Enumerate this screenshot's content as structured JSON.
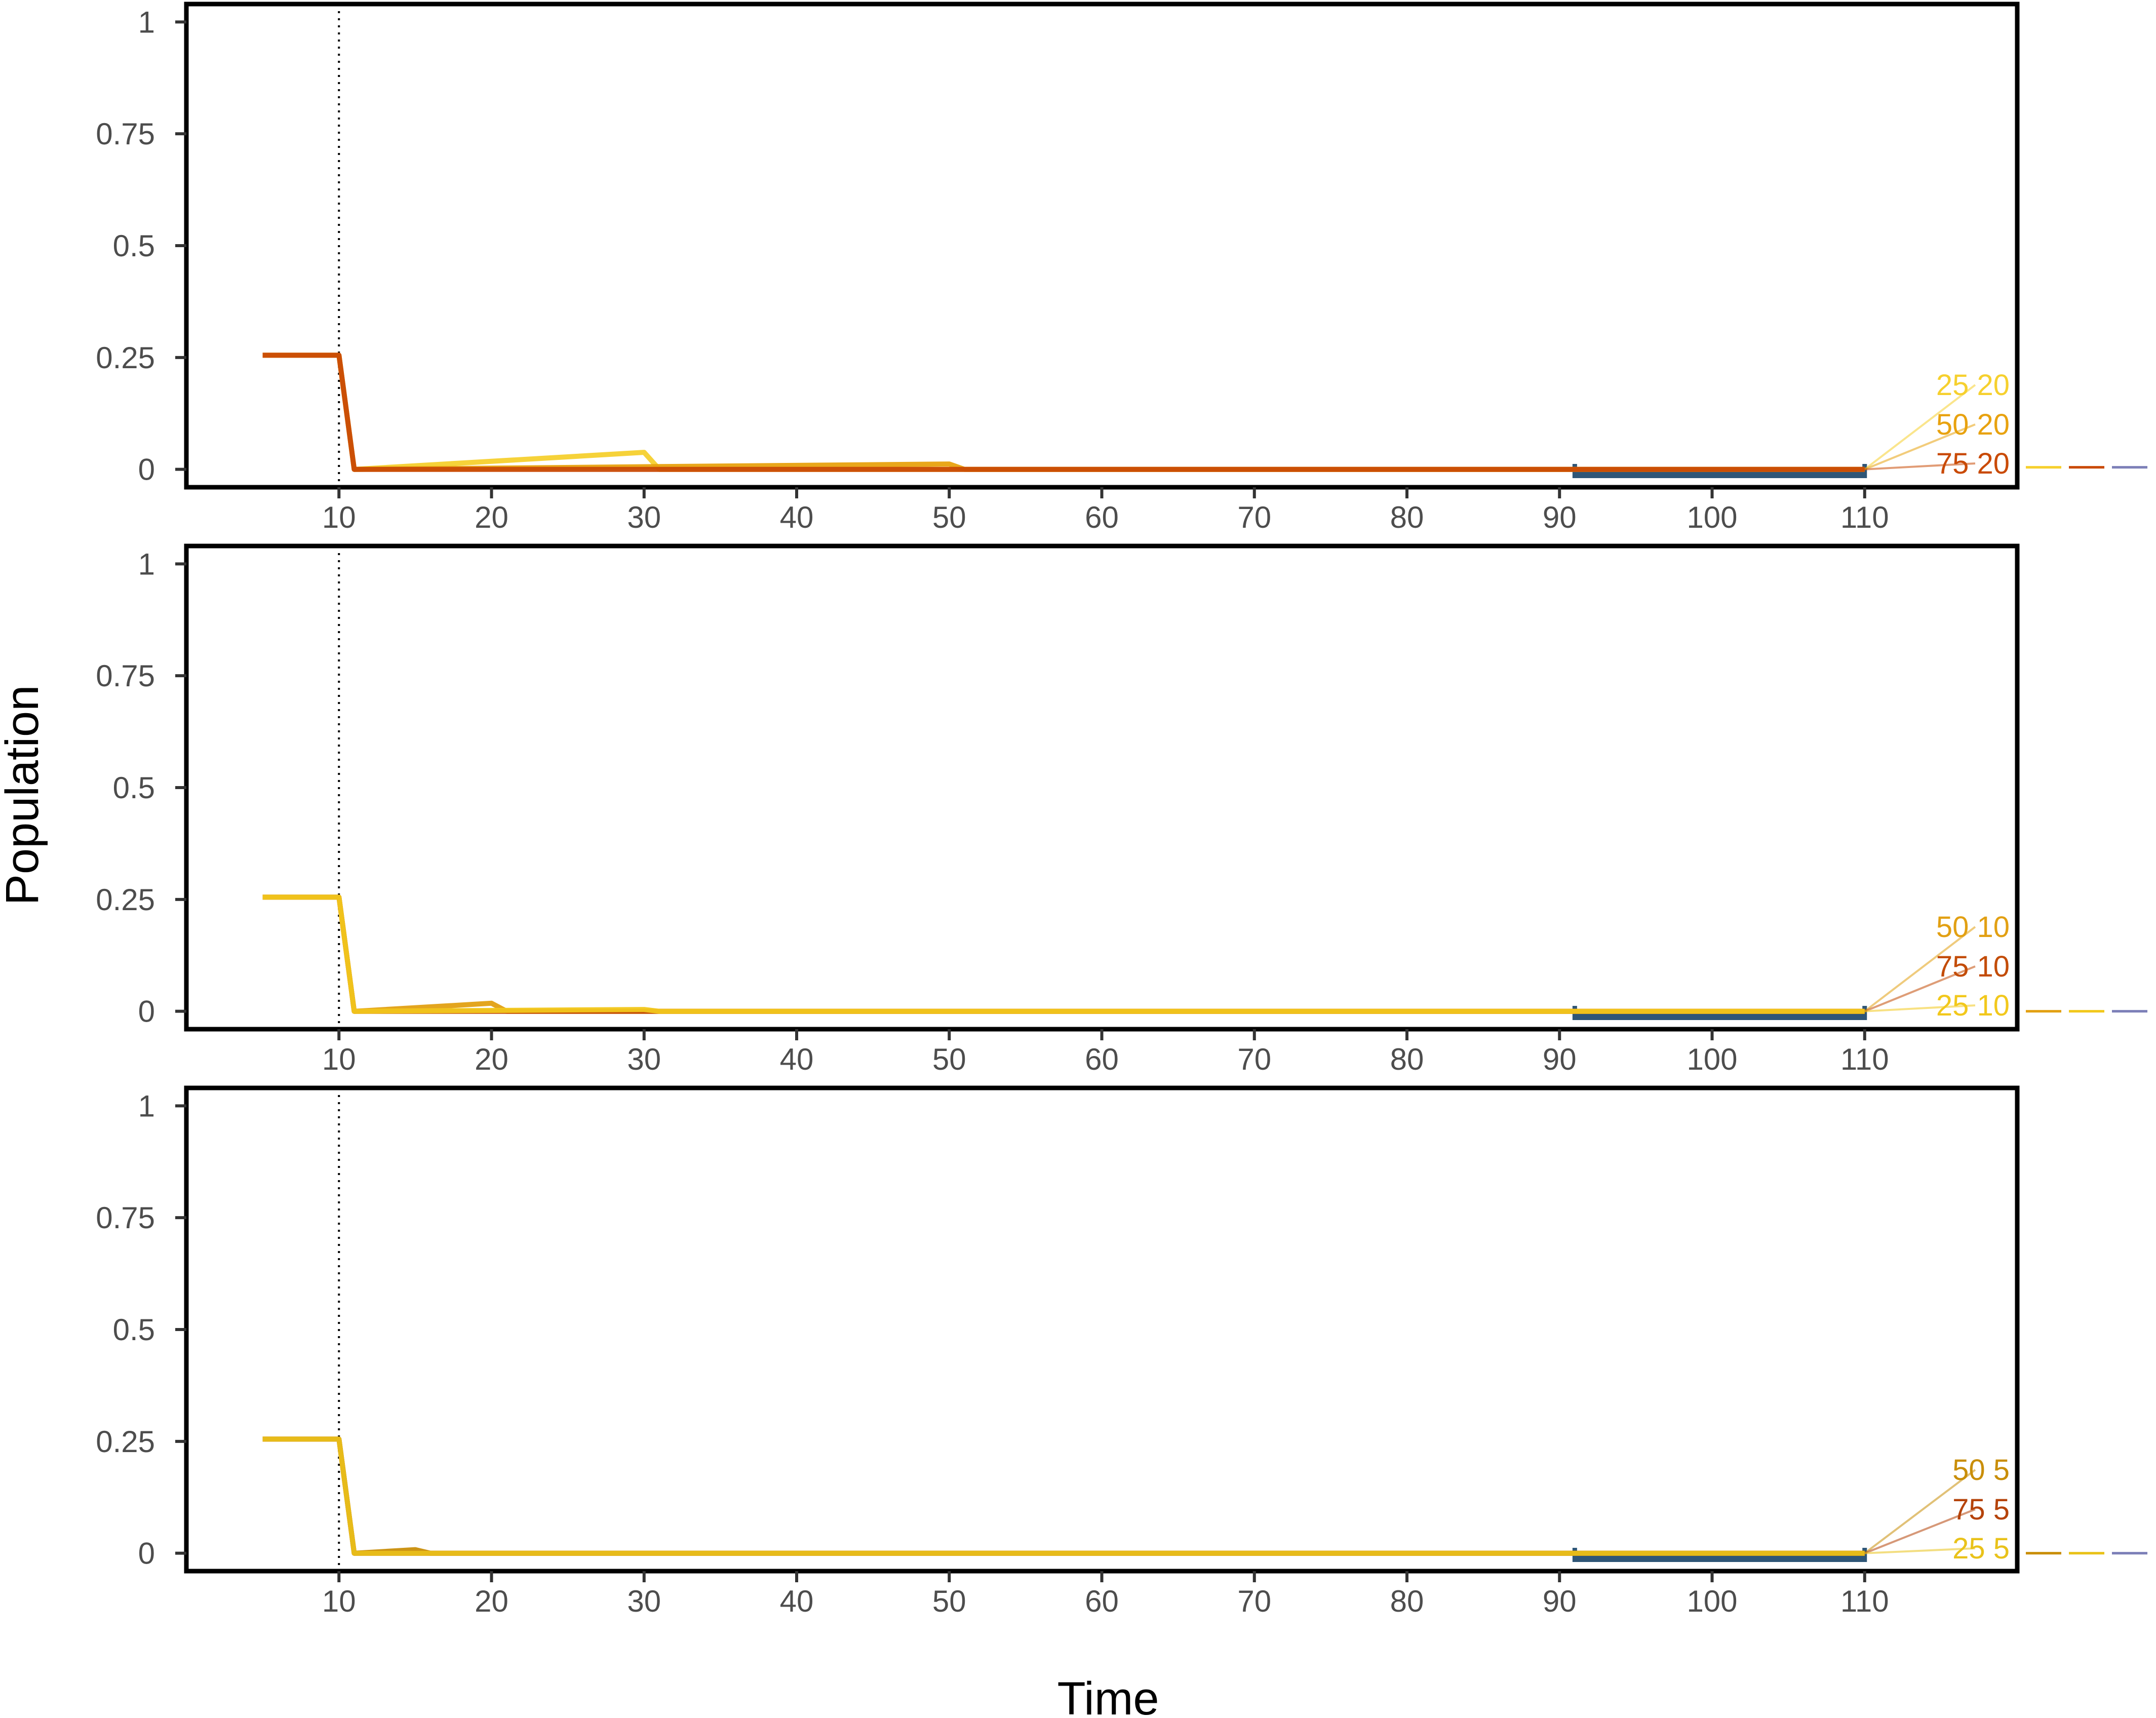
{
  "figure": {
    "xlabel": "Time",
    "ylabel": "Population"
  },
  "chart_data": [
    {
      "type": "line",
      "xlim": [
        0,
        120
      ],
      "ylim": [
        -0.04,
        1.04
      ],
      "x_ticks": [
        10,
        20,
        30,
        40,
        50,
        60,
        70,
        80,
        90,
        100,
        110
      ],
      "y_ticks": [
        0,
        0.25,
        0.5,
        0.75,
        1
      ],
      "y_tick_labels": [
        "0",
        "0.25",
        "0.5",
        "0.75",
        "1"
      ],
      "vline_x": 10,
      "range_bar": [
        91,
        110
      ],
      "series": [
        {
          "name": "25 20",
          "color": "#F6D02E",
          "x": [
            5,
            10,
            11,
            30,
            31,
            110
          ],
          "y": [
            0.255,
            0.255,
            0.0,
            0.038,
            0.0,
            0.0
          ]
        },
        {
          "name": "50 20",
          "color": "#E8A20F",
          "x": [
            5,
            10,
            11,
            50,
            51,
            110
          ],
          "y": [
            0.255,
            0.255,
            0.0,
            0.012,
            0.0,
            0.0
          ]
        },
        {
          "name": "75 20",
          "color": "#C94A05",
          "x": [
            5,
            10,
            11,
            110
          ],
          "y": [
            0.255,
            0.255,
            0.0,
            0.0
          ]
        }
      ]
    },
    {
      "type": "line",
      "xlim": [
        0,
        120
      ],
      "ylim": [
        -0.04,
        1.04
      ],
      "x_ticks": [
        10,
        20,
        30,
        40,
        50,
        60,
        70,
        80,
        90,
        100,
        110
      ],
      "y_ticks": [
        0,
        0.25,
        0.5,
        0.75,
        1
      ],
      "y_tick_labels": [
        "0",
        "0.25",
        "0.5",
        "0.75",
        "1"
      ],
      "vline_x": 10,
      "range_bar": [
        91,
        110
      ],
      "series": [
        {
          "name": "50 10",
          "color": "#E2A013",
          "x": [
            5,
            10,
            11,
            20,
            21,
            110
          ],
          "y": [
            0.255,
            0.255,
            0.0,
            0.018,
            0.0,
            0.0
          ]
        },
        {
          "name": "75 10",
          "color": "#C34C07",
          "x": [
            5,
            10,
            11,
            110
          ],
          "y": [
            0.255,
            0.255,
            0.0,
            0.0
          ]
        },
        {
          "name": "25 10",
          "color": "#F2C81C",
          "x": [
            5,
            10,
            11,
            30,
            31,
            110
          ],
          "y": [
            0.255,
            0.255,
            0.0,
            0.004,
            0.0,
            0.0
          ]
        }
      ]
    },
    {
      "type": "line",
      "xlim": [
        0,
        120
      ],
      "ylim": [
        -0.04,
        1.04
      ],
      "x_ticks": [
        10,
        20,
        30,
        40,
        50,
        60,
        70,
        80,
        90,
        100,
        110
      ],
      "y_ticks": [
        0,
        0.25,
        0.5,
        0.75,
        1
      ],
      "y_tick_labels": [
        "0",
        "0.25",
        "0.5",
        "0.75",
        "1"
      ],
      "vline_x": 10,
      "range_bar": [
        91,
        110
      ],
      "series": [
        {
          "name": "50 5",
          "color": "#C98E08",
          "x": [
            5,
            10,
            11,
            15,
            16,
            110
          ],
          "y": [
            0.255,
            0.255,
            0.0,
            0.008,
            0.0,
            0.0
          ]
        },
        {
          "name": "75 5",
          "color": "#B5430A",
          "x": [
            5,
            10,
            11,
            110
          ],
          "y": [
            0.255,
            0.255,
            0.0,
            0.0
          ]
        },
        {
          "name": "25 5",
          "color": "#E9C21A",
          "x": [
            5,
            10,
            11,
            110
          ],
          "y": [
            0.255,
            0.255,
            0.0,
            0.0
          ]
        }
      ]
    }
  ],
  "colors": {
    "range_bar": "#2F5677",
    "legend_purple": "#7D80B8"
  }
}
